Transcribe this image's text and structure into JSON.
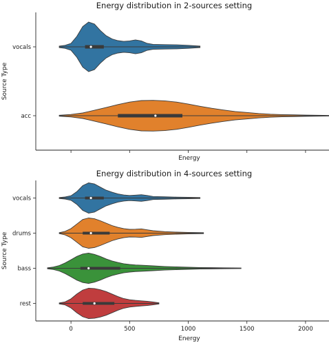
{
  "chart_data": [
    {
      "type": "violin",
      "title": "Energy distribution in 2-sources setting",
      "xlabel": "Energy",
      "ylabel": "Source Type",
      "xlim": [
        -300,
        2200
      ],
      "show_x_tick_labels": false,
      "x_ticks": [
        0,
        500,
        1000,
        1500,
        2000
      ],
      "grid": false,
      "categories": [
        "vocals",
        "acc"
      ],
      "series": [
        {
          "color": "#3274a1",
          "stats": {
            "min": -100,
            "q1": 120,
            "median": 170,
            "q3": 280,
            "max": 1100
          },
          "density": [
            [
              -100,
              0.03
            ],
            [
              -50,
              0.06
            ],
            [
              0,
              0.14
            ],
            [
              50,
              0.42
            ],
            [
              100,
              0.82
            ],
            [
              150,
              1.0
            ],
            [
              200,
              0.92
            ],
            [
              250,
              0.66
            ],
            [
              300,
              0.45
            ],
            [
              350,
              0.32
            ],
            [
              400,
              0.25
            ],
            [
              450,
              0.22
            ],
            [
              500,
              0.24
            ],
            [
              550,
              0.28
            ],
            [
              600,
              0.24
            ],
            [
              650,
              0.14
            ],
            [
              700,
              0.1
            ],
            [
              800,
              0.09
            ],
            [
              900,
              0.08
            ],
            [
              1000,
              0.06
            ],
            [
              1100,
              0.03
            ]
          ]
        },
        {
          "color": "#e1812c",
          "stats": {
            "min": -100,
            "q1": 400,
            "median": 720,
            "q3": 950,
            "max": 2200
          },
          "density": [
            [
              -100,
              0.02
            ],
            [
              0,
              0.05
            ],
            [
              100,
              0.11
            ],
            [
              200,
              0.22
            ],
            [
              300,
              0.33
            ],
            [
              400,
              0.45
            ],
            [
              500,
              0.55
            ],
            [
              600,
              0.61
            ],
            [
              700,
              0.62
            ],
            [
              800,
              0.6
            ],
            [
              900,
              0.55
            ],
            [
              1000,
              0.47
            ],
            [
              1100,
              0.38
            ],
            [
              1200,
              0.3
            ],
            [
              1300,
              0.23
            ],
            [
              1400,
              0.17
            ],
            [
              1500,
              0.13
            ],
            [
              1600,
              0.09
            ],
            [
              1700,
              0.06
            ],
            [
              1800,
              0.045
            ],
            [
              1900,
              0.035
            ],
            [
              2000,
              0.025
            ],
            [
              2100,
              0.02
            ],
            [
              2200,
              0.01
            ]
          ]
        }
      ]
    },
    {
      "type": "violin",
      "title": "Energy distribution in 4-sources setting",
      "xlabel": "Energy",
      "ylabel": "Source Type",
      "xlim": [
        -300,
        2200
      ],
      "show_x_tick_labels": true,
      "x_ticks": [
        0,
        500,
        1000,
        1500,
        2000
      ],
      "grid": false,
      "categories": [
        "vocals",
        "drums",
        "bass",
        "rest"
      ],
      "series": [
        {
          "color": "#3274a1",
          "stats": {
            "min": -100,
            "q1": 120,
            "median": 170,
            "q3": 280,
            "max": 1100
          },
          "density": [
            [
              -100,
              0.03
            ],
            [
              -50,
              0.07
            ],
            [
              0,
              0.15
            ],
            [
              50,
              0.42
            ],
            [
              100,
              0.82
            ],
            [
              150,
              1.0
            ],
            [
              200,
              0.93
            ],
            [
              250,
              0.72
            ],
            [
              300,
              0.52
            ],
            [
              350,
              0.38
            ],
            [
              400,
              0.27
            ],
            [
              450,
              0.2
            ],
            [
              500,
              0.17
            ],
            [
              550,
              0.19
            ],
            [
              600,
              0.22
            ],
            [
              650,
              0.17
            ],
            [
              700,
              0.1
            ],
            [
              800,
              0.08
            ],
            [
              900,
              0.06
            ],
            [
              1000,
              0.05
            ],
            [
              1100,
              0.03
            ]
          ]
        },
        {
          "color": "#e1812c",
          "stats": {
            "min": -100,
            "q1": 100,
            "median": 170,
            "q3": 330,
            "max": 1130
          },
          "density": [
            [
              -100,
              0.03
            ],
            [
              -50,
              0.12
            ],
            [
              0,
              0.3
            ],
            [
              50,
              0.6
            ],
            [
              100,
              0.9
            ],
            [
              150,
              1.0
            ],
            [
              200,
              0.95
            ],
            [
              250,
              0.82
            ],
            [
              300,
              0.66
            ],
            [
              350,
              0.5
            ],
            [
              400,
              0.38
            ],
            [
              450,
              0.3
            ],
            [
              500,
              0.25
            ],
            [
              550,
              0.26
            ],
            [
              600,
              0.28
            ],
            [
              650,
              0.22
            ],
            [
              700,
              0.16
            ],
            [
              800,
              0.1
            ],
            [
              900,
              0.07
            ],
            [
              1000,
              0.05
            ],
            [
              1130,
              0.03
            ]
          ]
        },
        {
          "color": "#3a923a",
          "stats": {
            "min": -200,
            "q1": 80,
            "median": 150,
            "q3": 420,
            "max": 1450
          },
          "density": [
            [
              -200,
              0.03
            ],
            [
              -150,
              0.08
            ],
            [
              -100,
              0.18
            ],
            [
              -50,
              0.35
            ],
            [
              0,
              0.56
            ],
            [
              50,
              0.78
            ],
            [
              100,
              0.94
            ],
            [
              150,
              1.0
            ],
            [
              200,
              0.92
            ],
            [
              250,
              0.78
            ],
            [
              300,
              0.62
            ],
            [
              350,
              0.48
            ],
            [
              400,
              0.38
            ],
            [
              450,
              0.3
            ],
            [
              500,
              0.25
            ],
            [
              550,
              0.22
            ],
            [
              600,
              0.2
            ],
            [
              700,
              0.16
            ],
            [
              800,
              0.12
            ],
            [
              900,
              0.09
            ],
            [
              1000,
              0.07
            ],
            [
              1100,
              0.05
            ],
            [
              1200,
              0.04
            ],
            [
              1300,
              0.03
            ],
            [
              1450,
              0.02
            ]
          ]
        },
        {
          "color": "#c03d3e",
          "stats": {
            "min": -100,
            "q1": 100,
            "median": 200,
            "q3": 370,
            "max": 750
          },
          "density": [
            [
              -100,
              0.03
            ],
            [
              -50,
              0.1
            ],
            [
              0,
              0.3
            ],
            [
              50,
              0.62
            ],
            [
              100,
              0.88
            ],
            [
              150,
              1.0
            ],
            [
              200,
              0.98
            ],
            [
              250,
              0.9
            ],
            [
              300,
              0.78
            ],
            [
              350,
              0.62
            ],
            [
              400,
              0.45
            ],
            [
              450,
              0.32
            ],
            [
              500,
              0.24
            ],
            [
              550,
              0.2
            ],
            [
              600,
              0.17
            ],
            [
              650,
              0.14
            ],
            [
              700,
              0.09
            ],
            [
              750,
              0.04
            ]
          ]
        }
      ]
    }
  ]
}
